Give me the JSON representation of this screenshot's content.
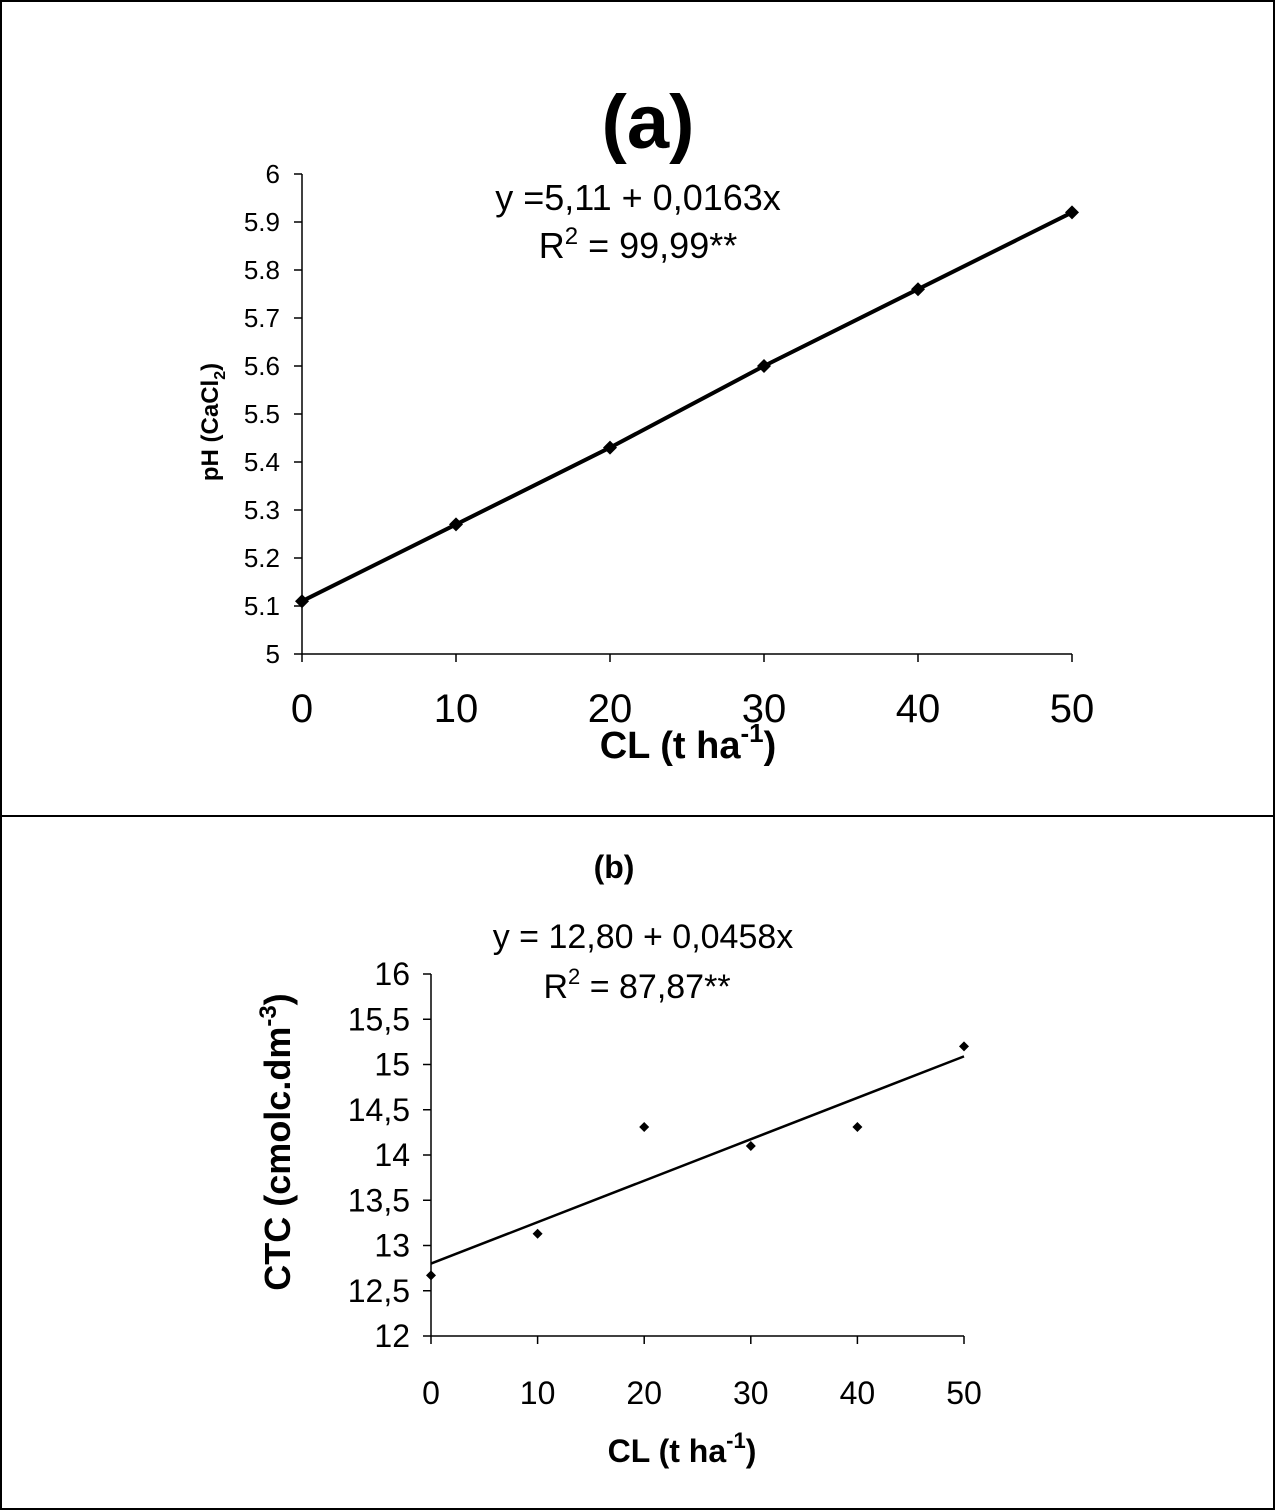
{
  "chart_data": [
    {
      "type": "line",
      "title": "(a)",
      "equation": "y =5,11 +  0,0163x",
      "r2_label": "R",
      "r2_exp": "2",
      "r2_value": " = 99,99**",
      "ylabel": "pH (CaCl",
      "ylabel_sub": "2",
      "ylabel_end": ")",
      "xlabel": "CL (t ha",
      "xlabel_sup": "-1",
      "xlabel_end": ")",
      "xlim": [
        0,
        50
      ],
      "ylim": [
        5,
        6
      ],
      "x_ticks": [
        "0",
        "10",
        "20",
        "30",
        "40",
        "50"
      ],
      "y_ticks": [
        "5",
        "5.1",
        "5.2",
        "5.3",
        "5.4",
        "5.5",
        "5.6",
        "5.7",
        "5.8",
        "5.9",
        "6"
      ],
      "grid": false,
      "series": [
        {
          "x": [
            0,
            10,
            20,
            30,
            40,
            50
          ],
          "values": [
            5.11,
            5.27,
            5.43,
            5.6,
            5.76,
            5.92
          ]
        }
      ],
      "fit": {
        "intercept": 5.11,
        "slope": 0.0163
      }
    },
    {
      "type": "scatter",
      "title": "(b)",
      "equation": "y = 12,80 +  0,0458x",
      "r2_label": "R",
      "r2_exp": "2",
      "r2_value": " = 87,87**",
      "ylabel": "CTC (cmolc.dm",
      "ylabel_sup": "-3",
      "ylabel_end": ")",
      "xlabel": "CL (t ha",
      "xlabel_sup": "-1",
      "xlabel_end": ")",
      "xlim": [
        0,
        50
      ],
      "ylim": [
        12,
        16
      ],
      "x_ticks": [
        "0",
        "10",
        "20",
        "30",
        "40",
        "50"
      ],
      "y_ticks": [
        "12",
        "12,5",
        "13",
        "13,5",
        "14",
        "14,5",
        "15",
        "15,5",
        "16"
      ],
      "grid": false,
      "series": [
        {
          "x": [
            0,
            10,
            20,
            30,
            40,
            50
          ],
          "values": [
            12.67,
            13.13,
            14.31,
            14.1,
            14.31,
            15.2
          ]
        }
      ],
      "fit": {
        "intercept": 12.8,
        "slope": 0.0458
      }
    }
  ]
}
